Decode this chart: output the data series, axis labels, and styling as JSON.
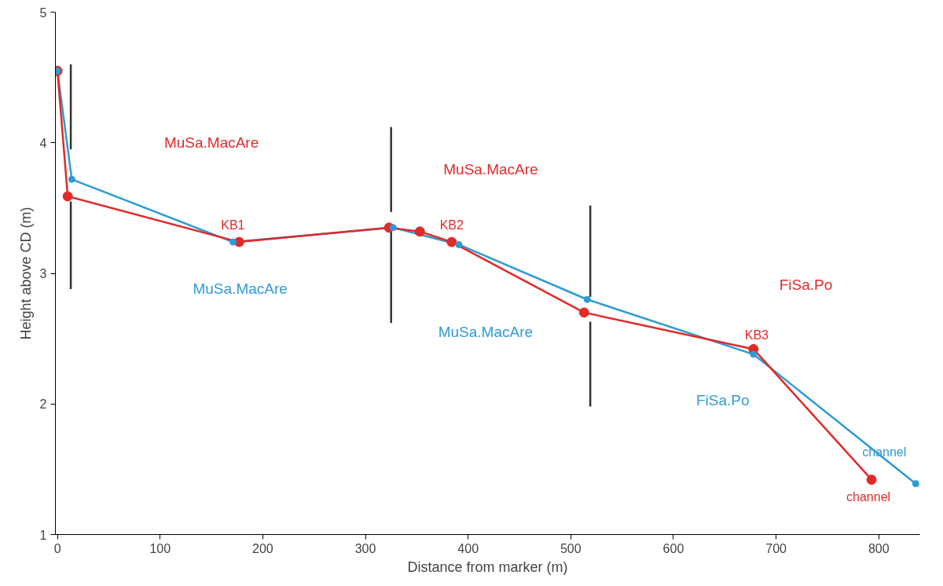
{
  "chart_data": {
    "type": "line",
    "xlabel": "Distance from marker (m)",
    "ylabel": "Height above CD (m)",
    "xlim": [
      -2,
      840
    ],
    "ylim": [
      1,
      5
    ],
    "xticks": [
      0,
      100,
      200,
      300,
      400,
      500,
      600,
      700,
      800
    ],
    "yticks": [
      1,
      2,
      3,
      4,
      5
    ],
    "grid": false,
    "marker": "circle",
    "line_style": "solid",
    "series": [
      {
        "color": "#2e9bd6",
        "x": [
          0,
          14,
          171,
          327,
          391,
          516,
          678,
          836
        ],
        "values": [
          4.55,
          3.72,
          3.24,
          3.35,
          3.22,
          2.8,
          2.38,
          1.39
        ]
      },
      {
        "color": "#e02a2a",
        "x": [
          0,
          10,
          177,
          323,
          353,
          384,
          513,
          678,
          793
        ],
        "values": [
          4.55,
          3.59,
          3.24,
          3.35,
          3.32,
          3.24,
          2.7,
          2.42,
          1.42
        ]
      },
      {
        "color": "#333333",
        "marker": "none",
        "x": [
          13,
          13
        ],
        "values": [
          3.95,
          4.6
        ]
      },
      {
        "color": "#333333",
        "marker": "none",
        "x": [
          13,
          13
        ],
        "values": [
          2.88,
          3.55
        ]
      },
      {
        "color": "#333333",
        "marker": "none",
        "x": [
          325,
          325
        ],
        "values": [
          3.47,
          4.12
        ]
      },
      {
        "color": "#333333",
        "marker": "none",
        "x": [
          325,
          325
        ],
        "values": [
          2.62,
          3.35
        ]
      },
      {
        "color": "#333333",
        "marker": "none",
        "x": [
          519,
          519
        ],
        "values": [
          2.82,
          3.52
        ]
      },
      {
        "color": "#333333",
        "marker": "none",
        "x": [
          519,
          519
        ],
        "values": [
          1.98,
          2.63
        ]
      }
    ],
    "annotations": [
      "MuSa.MacAre",
      "MuSa.MacAre",
      "MuSa.MacAre",
      "MuSa.MacAre",
      "FiSa.Po",
      "FiSa.Po",
      {
        "text": "KB1",
        "x": 177,
        "y": 3.24
      },
      {
        "text": "KB2",
        "x": 384,
        "y": 3.24
      },
      {
        "text": "KB3",
        "x": 678,
        "y": 2.42
      },
      {
        "text": "channel",
        "x": 793,
        "y": 1.42
      },
      {
        "text": "channel",
        "x": 836,
        "y": 1.39
      }
    ]
  }
}
